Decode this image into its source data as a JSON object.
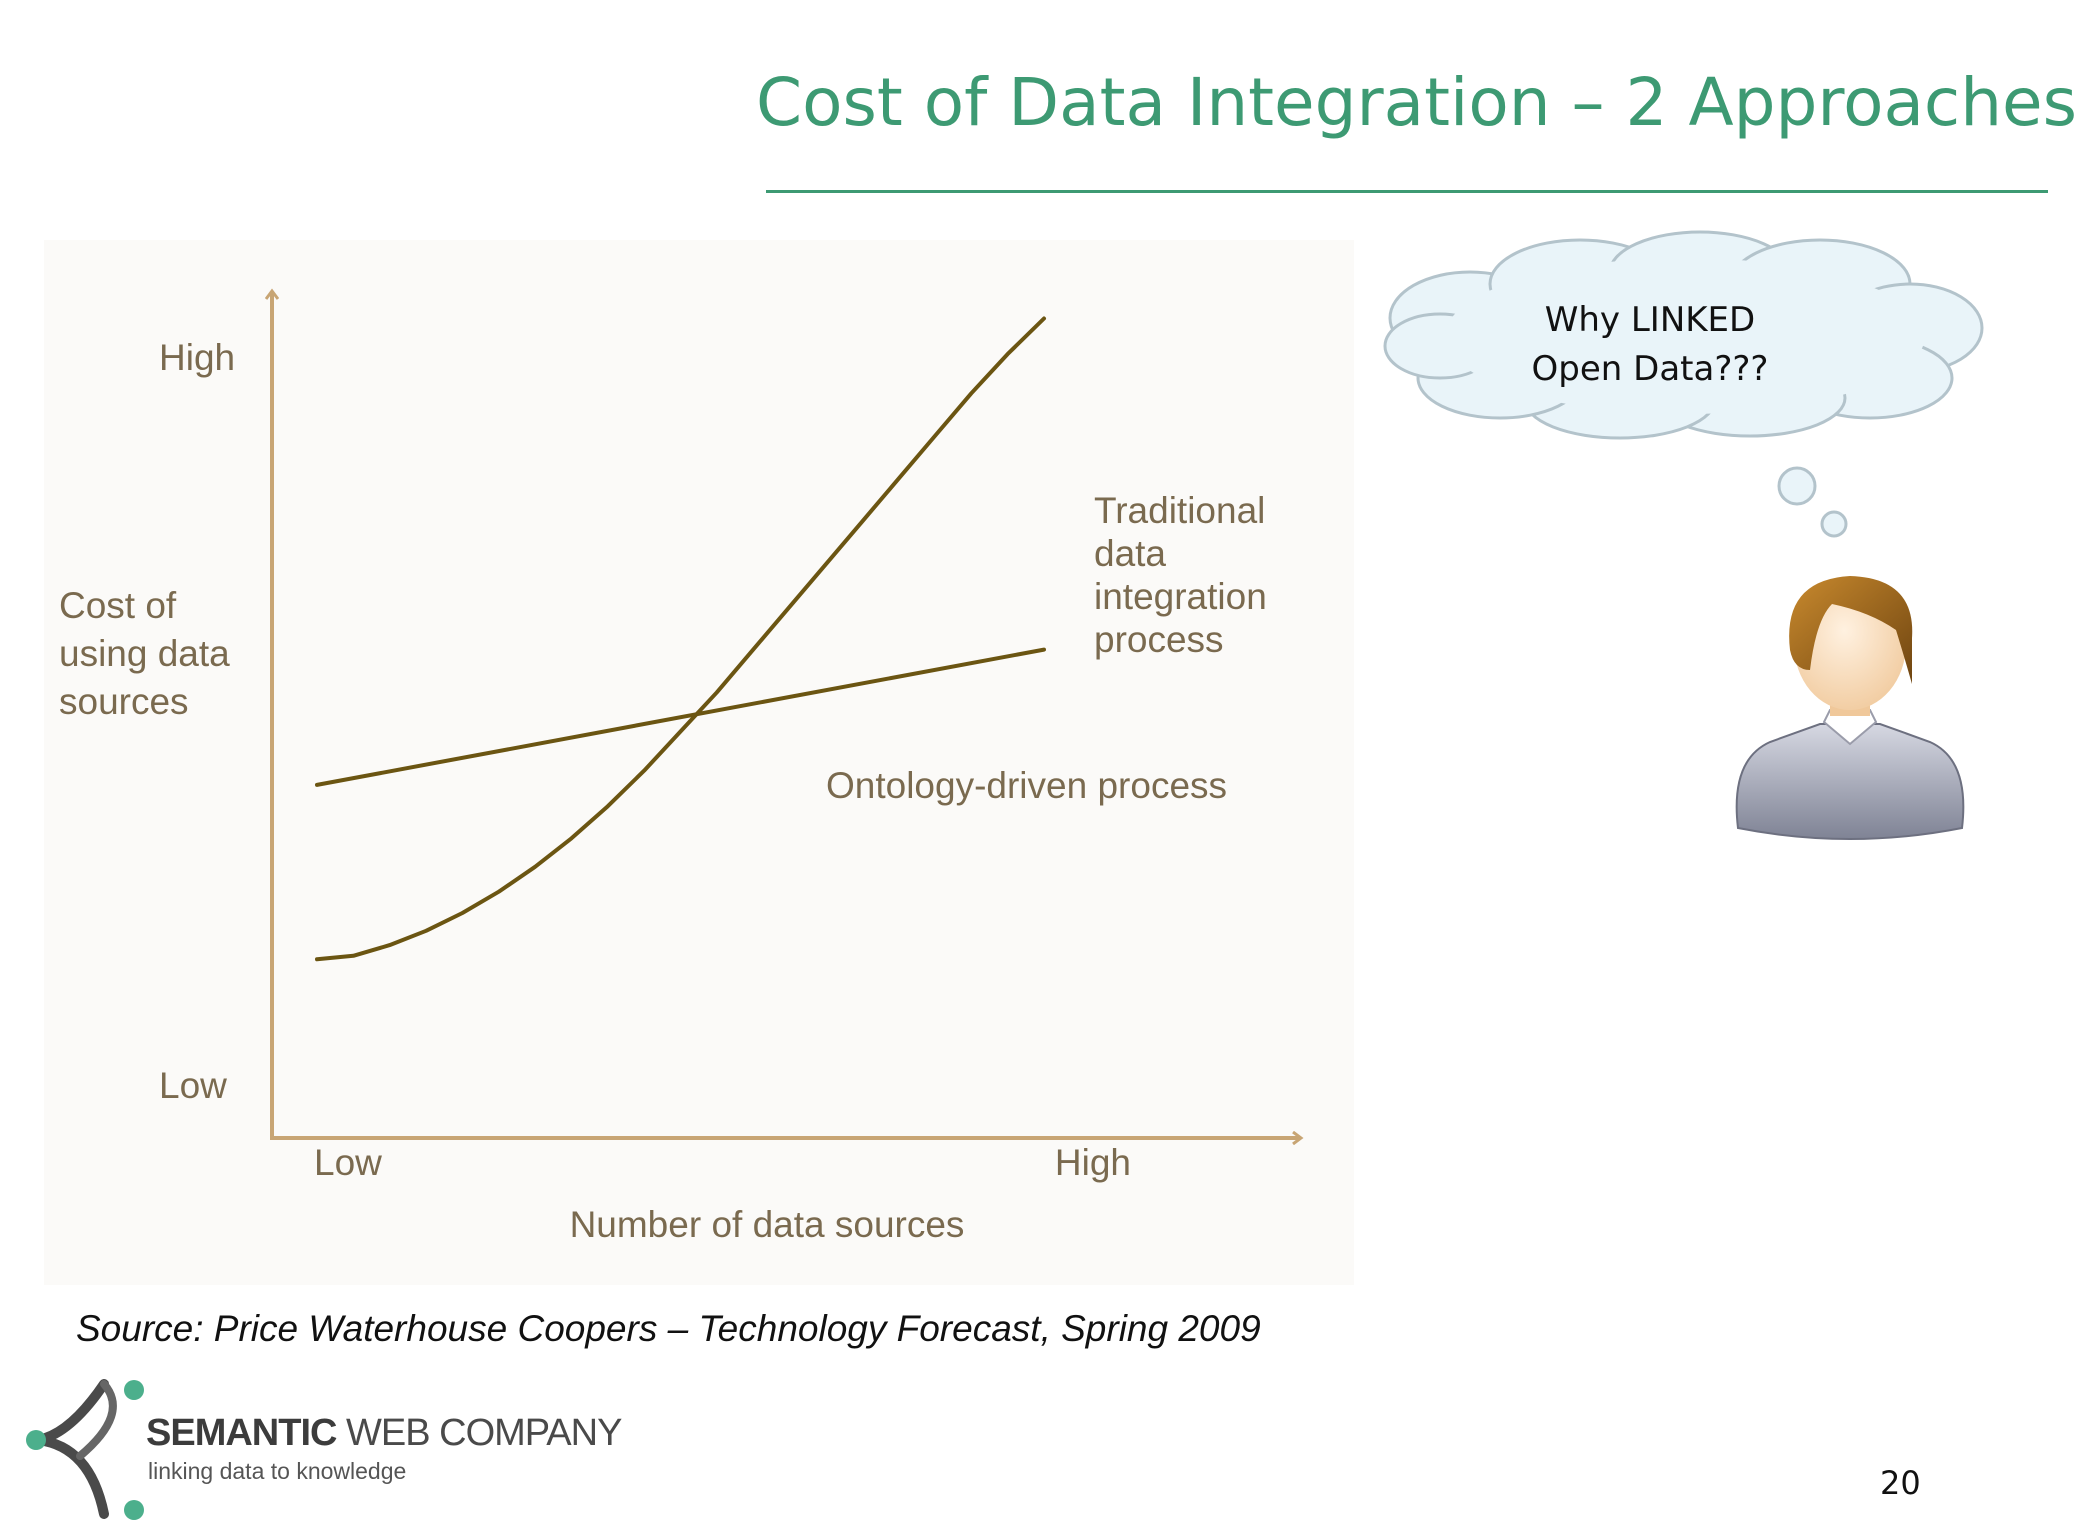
{
  "slide": {
    "title": "Cost of Data Integration – 2 Approaches",
    "page_number": "20",
    "source": "Source: Price Waterhouse Coopers – Technology Forecast, Spring 2009"
  },
  "callout": {
    "line1": "Why LINKED",
    "line2": "Open Data???"
  },
  "logo": {
    "name_bold": "SEMANTIC",
    "name_rest": " WEB COMPANY",
    "tagline": "linking data to knowledge"
  },
  "colors": {
    "title_green": "#3d9a73",
    "axis_color": "#c8a574",
    "line_color": "#6b5512",
    "label_color": "#7a6a4f"
  },
  "chart_data": {
    "type": "line",
    "xlabel": "Number of data sources",
    "ylabel_lines": [
      "Cost of",
      "using data",
      "sources"
    ],
    "x_ticks": [
      "Low",
      "High"
    ],
    "y_ticks": [
      "Low",
      "High"
    ],
    "xlim": [
      0,
      1
    ],
    "ylim": [
      0,
      1
    ],
    "grid": false,
    "legend": "none",
    "series": [
      {
        "name": "Traditional data integration process",
        "label_lines": [
          "Traditional",
          "data",
          "integration",
          "process"
        ],
        "x": [
          0.0,
          0.05,
          0.1,
          0.15,
          0.2,
          0.25,
          0.3,
          0.35,
          0.4,
          0.45,
          0.5,
          0.55,
          0.6,
          0.65,
          0.7,
          0.75,
          0.8,
          0.85,
          0.9,
          0.95,
          1.0
        ],
        "y": [
          0.14,
          0.145,
          0.16,
          0.18,
          0.205,
          0.235,
          0.27,
          0.31,
          0.355,
          0.405,
          0.46,
          0.515,
          0.575,
          0.635,
          0.695,
          0.755,
          0.815,
          0.875,
          0.935,
          0.99,
          1.04
        ]
      },
      {
        "name": "Ontology-driven process",
        "label_lines": [
          "Ontology-driven process"
        ],
        "x": [
          0.0,
          1.0
        ],
        "y": [
          0.385,
          0.575
        ]
      }
    ]
  }
}
